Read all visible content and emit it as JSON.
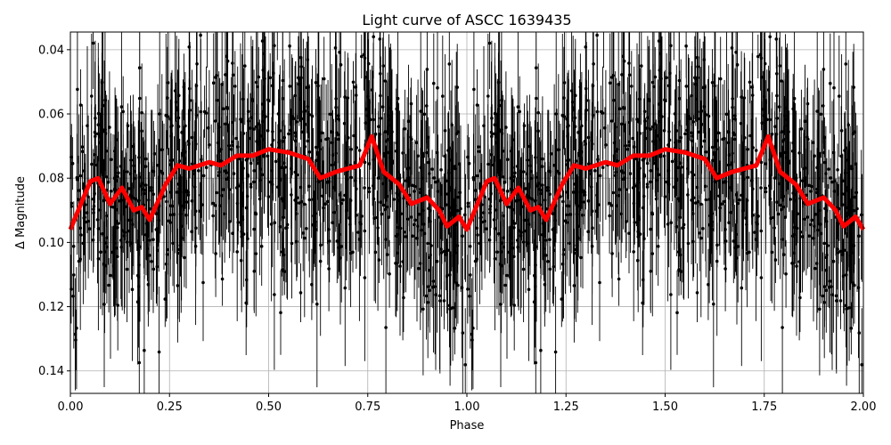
{
  "chart_data": {
    "type": "scatter",
    "title": "Light curve of ASCC 1639435",
    "xlabel": "Phase",
    "ylabel": "Δ Magnitude",
    "xlim": [
      0.0,
      2.0
    ],
    "ylim": [
      0.147,
      0.0345
    ],
    "y_inverted": true,
    "grid": true,
    "legend": null,
    "x_ticks": [
      "0.00",
      "0.25",
      "0.50",
      "0.75",
      "1.00",
      "1.25",
      "1.50",
      "1.75",
      "2.00"
    ],
    "y_ticks": [
      "0.04",
      "0.06",
      "0.08",
      "0.10",
      "0.12",
      "0.14"
    ],
    "series": [
      {
        "name": "observations",
        "style": "black points with vertical error bars",
        "color": "#000000",
        "description": "Dense scatter of photometric points across phase 0–2 (folded and repeated), magnitudes spanning ~0.035 to ~0.147 with large error bars"
      },
      {
        "name": "binned mean",
        "style": "thick line",
        "color": "#ff0000",
        "x": [
          0.0,
          0.03,
          0.05,
          0.07,
          0.1,
          0.13,
          0.16,
          0.18,
          0.2,
          0.24,
          0.27,
          0.3,
          0.35,
          0.38,
          0.42,
          0.46,
          0.5,
          0.55,
          0.6,
          0.63,
          0.67,
          0.7,
          0.73,
          0.76,
          0.79,
          0.83,
          0.86,
          0.9,
          0.93,
          0.95,
          0.98,
          1.0,
          1.03,
          1.05,
          1.07,
          1.1,
          1.13,
          1.16,
          1.18,
          1.2,
          1.24,
          1.27,
          1.3,
          1.35,
          1.38,
          1.42,
          1.46,
          1.5,
          1.55,
          1.6,
          1.63,
          1.67,
          1.7,
          1.73,
          1.76,
          1.79,
          1.83,
          1.86,
          1.9,
          1.93,
          1.95,
          1.98,
          2.0
        ],
        "values": [
          0.096,
          0.087,
          0.081,
          0.08,
          0.088,
          0.083,
          0.09,
          0.089,
          0.093,
          0.082,
          0.076,
          0.077,
          0.075,
          0.076,
          0.073,
          0.073,
          0.071,
          0.072,
          0.074,
          0.08,
          0.078,
          0.077,
          0.076,
          0.067,
          0.078,
          0.082,
          0.088,
          0.086,
          0.09,
          0.095,
          0.092,
          0.096,
          0.087,
          0.081,
          0.08,
          0.088,
          0.083,
          0.09,
          0.089,
          0.093,
          0.082,
          0.076,
          0.077,
          0.075,
          0.076,
          0.073,
          0.073,
          0.071,
          0.072,
          0.074,
          0.08,
          0.078,
          0.077,
          0.076,
          0.067,
          0.078,
          0.082,
          0.088,
          0.086,
          0.09,
          0.095,
          0.092,
          0.096
        ]
      }
    ]
  },
  "colors": {
    "curve": "#ff0000",
    "points": "#000000",
    "grid": "#b0b0b0"
  }
}
